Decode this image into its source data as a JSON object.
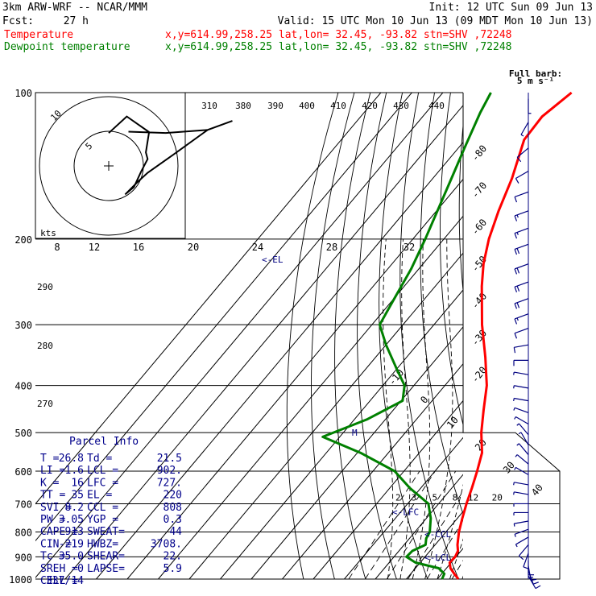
{
  "header": {
    "model": "3km ARW-WRF -- NCAR/MMM",
    "init": "Init: 12 UTC Sun 09 Jun 13",
    "fcst_label": "Fcst:",
    "fcst_value": "27 h",
    "valid": "Valid: 15 UTC Mon 10 Jun 13 (09 MDT Mon 10 Jun 13)",
    "temp_legend": "Temperature",
    "temp_info": "x,y=614.99,258.25   lat,lon= 32.45, -93.82   stn=SHV ,72248",
    "dew_legend": "Dewpoint temperature",
    "dew_info": "x,y=614.99,258.25   lat,lon= 32.45, -93.82   stn=SHV ,72248"
  },
  "colors": {
    "temperature": "#ff0000",
    "dewpoint": "#008000",
    "barbs": "#000080",
    "parcel_text": "#00008b"
  },
  "wind": {
    "title": "Full barb:",
    "unit": "5 m s⁻¹"
  },
  "hodograph": {
    "units": "kts",
    "ring_labels": [
      "5",
      "10"
    ],
    "speed_ticks": [
      "8",
      "12",
      "16",
      "20",
      "24",
      "28",
      "32"
    ]
  },
  "parcel": {
    "title": "Parcel Info",
    "rows": [
      [
        "T  =",
        "26.8",
        "Td =",
        "21.5"
      ],
      [
        "LI =",
        "-1.6",
        "LCL =",
        "902."
      ],
      [
        "K  =",
        "16",
        "LFC =",
        "727."
      ],
      [
        "TT =",
        "35",
        "EL =",
        "220"
      ],
      [
        "SVI =",
        "8.2",
        "CCL =",
        "808"
      ],
      [
        "PW =",
        "3.05",
        "YGP =",
        "0.3"
      ],
      [
        "CAPE =",
        "913",
        "SWEAT=",
        "44"
      ],
      [
        "CIN =",
        "-219",
        "HWBZ=",
        "3708."
      ],
      [
        "Tc =",
        "35.0",
        "SHEAR=",
        "22."
      ],
      [
        "SREH =",
        "0",
        "LAPSE=",
        "5.9"
      ],
      [
        "CELL =",
        "337/14",
        "",
        ""
      ]
    ]
  },
  "chart_data": {
    "type": "line",
    "title": "",
    "ylabel": "",
    "pressure_levels": [
      100,
      200,
      300,
      400,
      500,
      600,
      700,
      800,
      900,
      1000
    ],
    "isotherms": [
      -80,
      -70,
      -60,
      -50,
      -40,
      -30,
      -20,
      -10,
      0,
      10,
      20,
      30,
      40
    ],
    "theta_labels": [
      310,
      380,
      390,
      400,
      410,
      420,
      430,
      440
    ],
    "theta_side_labels": [
      290,
      280,
      270
    ],
    "mixing_ratio_labels": [
      2,
      3,
      5,
      8,
      12,
      20
    ],
    "markers": [
      {
        "label": "<-EL",
        "p": 220
      },
      {
        "label": "<-LFC",
        "p": 727
      },
      {
        "label": "<-CCL",
        "p": 808
      },
      {
        "label": "<-LCL",
        "p": 902
      },
      {
        "label": "M",
        "p": 500
      }
    ],
    "series": [
      {
        "name": "Temperature",
        "points": [
          [
            1000,
            26.8
          ],
          [
            975,
            24
          ],
          [
            950,
            21.3
          ],
          [
            925,
            19.5
          ],
          [
            900,
            19.7
          ],
          [
            875,
            19
          ],
          [
            850,
            17.2
          ],
          [
            800,
            14.2
          ],
          [
            750,
            11.6
          ],
          [
            700,
            9
          ],
          [
            650,
            6.5
          ],
          [
            600,
            3.6
          ],
          [
            550,
            0.2
          ],
          [
            500,
            -5.5
          ],
          [
            450,
            -10.8
          ],
          [
            400,
            -16.5
          ],
          [
            350,
            -24.6
          ],
          [
            300,
            -34.5
          ],
          [
            250,
            -45
          ],
          [
            225,
            -50.5
          ],
          [
            200,
            -55.5
          ],
          [
            175,
            -60
          ],
          [
            150,
            -64.5
          ],
          [
            125,
            -71
          ],
          [
            112,
            -71.5
          ],
          [
            100,
            -68.5
          ]
        ]
      },
      {
        "name": "Dewpoint temperature",
        "points": [
          [
            1000,
            21.5
          ],
          [
            975,
            20.8
          ],
          [
            950,
            17.5
          ],
          [
            925,
            8.5
          ],
          [
            900,
            4
          ],
          [
            875,
            4.3
          ],
          [
            850,
            6.9
          ],
          [
            825,
            5.4
          ],
          [
            800,
            4.8
          ],
          [
            750,
            1.4
          ],
          [
            700,
            -3.3
          ],
          [
            650,
            -13.5
          ],
          [
            600,
            -23
          ],
          [
            550,
            -39
          ],
          [
            510,
            -55.5
          ],
          [
            470,
            -46
          ],
          [
            430,
            -39.5
          ],
          [
            400,
            -43
          ],
          [
            370,
            -50
          ],
          [
            330,
            -60
          ],
          [
            300,
            -67.5
          ],
          [
            270,
            -69.5
          ],
          [
            230,
            -72.5
          ],
          [
            200,
            -76
          ],
          [
            150,
            -84
          ],
          [
            130,
            -88
          ],
          [
            110,
            -92.5
          ],
          [
            100,
            -94.5
          ]
        ]
      }
    ],
    "winds": [
      {
        "p": 985,
        "dir": 150,
        "spd": 8
      },
      {
        "p": 960,
        "dir": 160,
        "spd": 12
      },
      {
        "p": 940,
        "dir": 170,
        "spd": 14
      },
      {
        "p": 915,
        "dir": 180,
        "spd": 10
      },
      {
        "p": 885,
        "dir": 200,
        "spd": 8
      },
      {
        "p": 850,
        "dir": 220,
        "spd": 8
      },
      {
        "p": 820,
        "dir": 240,
        "spd": 6
      },
      {
        "p": 790,
        "dir": 250,
        "spd": 6
      },
      {
        "p": 760,
        "dir": 260,
        "spd": 6
      },
      {
        "p": 730,
        "dir": 270,
        "spd": 5
      },
      {
        "p": 700,
        "dir": 270,
        "spd": 5
      },
      {
        "p": 670,
        "dir": 280,
        "spd": 6
      },
      {
        "p": 640,
        "dir": 280,
        "spd": 5
      },
      {
        "p": 610,
        "dir": 300,
        "spd": 5
      },
      {
        "p": 580,
        "dir": 310,
        "spd": 5
      },
      {
        "p": 555,
        "dir": 320,
        "spd": 5
      },
      {
        "p": 530,
        "dir": 330,
        "spd": 5
      },
      {
        "p": 505,
        "dir": 320,
        "spd": 5
      },
      {
        "p": 480,
        "dir": 300,
        "spd": 5
      },
      {
        "p": 455,
        "dir": 290,
        "spd": 5
      },
      {
        "p": 430,
        "dir": 280,
        "spd": 5
      },
      {
        "p": 405,
        "dir": 280,
        "spd": 6
      },
      {
        "p": 380,
        "dir": 280,
        "spd": 6
      },
      {
        "p": 355,
        "dir": 270,
        "spd": 8
      },
      {
        "p": 330,
        "dir": 260,
        "spd": 10
      },
      {
        "p": 305,
        "dir": 250,
        "spd": 12
      },
      {
        "p": 285,
        "dir": 250,
        "spd": 16
      },
      {
        "p": 265,
        "dir": 250,
        "spd": 20
      },
      {
        "p": 245,
        "dir": 250,
        "spd": 20
      },
      {
        "p": 225,
        "dir": 250,
        "spd": 20
      },
      {
        "p": 205,
        "dir": 250,
        "spd": 18
      },
      {
        "p": 190,
        "dir": 250,
        "spd": 16
      },
      {
        "p": 175,
        "dir": 250,
        "spd": 14
      },
      {
        "p": 160,
        "dir": 250,
        "spd": 12
      },
      {
        "p": 145,
        "dir": 240,
        "spd": 10
      },
      {
        "p": 130,
        "dir": 230,
        "spd": 8
      },
      {
        "p": 115,
        "dir": 210,
        "spd": 6
      },
      {
        "p": 103,
        "dir": 180,
        "spd": 5
      }
    ],
    "hodograph_points": [
      [
        180,
        5
      ],
      [
        200,
        8
      ],
      [
        230,
        8
      ],
      [
        250,
        6
      ],
      [
        260,
        6
      ],
      [
        280,
        5
      ],
      [
        310,
        5
      ],
      [
        330,
        5
      ],
      [
        300,
        5
      ],
      [
        280,
        6
      ],
      [
        260,
        10
      ],
      [
        250,
        16
      ],
      [
        250,
        20
      ],
      [
        250,
        16
      ],
      [
        240,
        10
      ],
      [
        210,
        6
      ]
    ]
  }
}
